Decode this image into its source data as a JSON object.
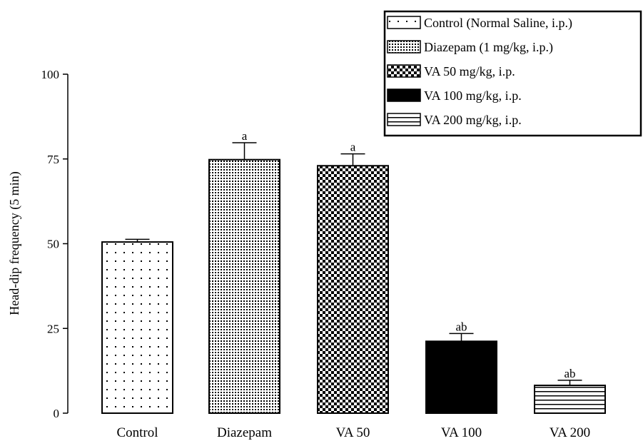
{
  "chart_data": {
    "type": "bar",
    "title": "",
    "xlabel": "",
    "ylabel": "Head-dip frequency (5 min)",
    "ylim": [
      0,
      100
    ],
    "yticks": [
      0,
      25,
      50,
      75,
      100
    ],
    "categories": [
      "Control",
      "Diazepam",
      "VA 50",
      "VA 100",
      "VA 200"
    ],
    "values": [
      50.5,
      74.8,
      73.0,
      21.2,
      8.2
    ],
    "errors": [
      0.8,
      5.0,
      3.5,
      2.3,
      1.5
    ],
    "significance": [
      "",
      "a",
      "a",
      "ab",
      "ab"
    ],
    "legend": {
      "position": "top-right",
      "entries": [
        {
          "label": "Control (Normal Saline, i.p.)",
          "pattern": "dots-sparse"
        },
        {
          "label": "Diazepam (1 mg/kg, i.p.)",
          "pattern": "dots-dense"
        },
        {
          "label": "VA 50 mg/kg, i.p.",
          "pattern": "checker"
        },
        {
          "label": "VA 100 mg/kg, i.p.",
          "pattern": "solid"
        },
        {
          "label": "VA 200 mg/kg, i.p.",
          "pattern": "hlines"
        }
      ]
    },
    "grid": false
  }
}
